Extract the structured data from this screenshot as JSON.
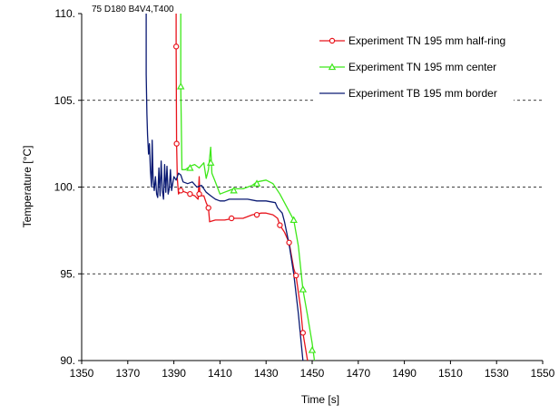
{
  "chart_data": {
    "type": "line",
    "title": "",
    "annotation": "75 D180 B4V4,T400",
    "xlabel": "Time [s]",
    "ylabel": "Temperature [°C]",
    "xlim": [
      1350,
      1550
    ],
    "ylim": [
      90,
      110
    ],
    "xticks": [
      "1350",
      "1370",
      "1390",
      "1410",
      "1430",
      "1450",
      "1470",
      "1490",
      "1510",
      "1530",
      "1550"
    ],
    "yticks": [
      "90.",
      "95.",
      "100.",
      "105.",
      "110."
    ],
    "grid": "horizontal-dashed",
    "legend_position": "top-right",
    "series": [
      {
        "name": "Experiment TN 195 mm half-ring",
        "color": "#e8141c",
        "marker": "circle",
        "points": [
          [
            1391,
            110
          ],
          [
            1391,
            108.1
          ],
          [
            1391.2,
            102.5
          ],
          [
            1391.5,
            100.5
          ],
          [
            1392,
            99.6
          ],
          [
            1393,
            99.8
          ],
          [
            1395,
            99.7
          ],
          [
            1397,
            99.6
          ],
          [
            1399,
            99.5
          ],
          [
            1400.5,
            99.3
          ],
          [
            1401,
            100.6
          ],
          [
            1401.3,
            99.5
          ],
          [
            1403,
            99.5
          ],
          [
            1404,
            99.1
          ],
          [
            1405,
            98.8
          ],
          [
            1405.5,
            98.0
          ],
          [
            1408,
            98.1
          ],
          [
            1412,
            98.1
          ],
          [
            1416,
            98.2
          ],
          [
            1420,
            98.2
          ],
          [
            1424,
            98.4
          ],
          [
            1428,
            98.5
          ],
          [
            1430,
            98.5
          ],
          [
            1433,
            98.4
          ],
          [
            1435,
            98.2
          ],
          [
            1436,
            97.8
          ],
          [
            1438,
            97.4
          ],
          [
            1440,
            96.8
          ],
          [
            1442,
            95.3
          ],
          [
            1443,
            94.9
          ],
          [
            1445,
            93.0
          ],
          [
            1446,
            91.6
          ],
          [
            1448,
            90
          ]
        ],
        "marker_points": [
          [
            1391,
            108.1
          ],
          [
            1391.2,
            102.5
          ],
          [
            1393,
            99.8
          ],
          [
            1397,
            99.6
          ],
          [
            1401,
            99.6
          ],
          [
            1405,
            98.8
          ],
          [
            1415,
            98.2
          ],
          [
            1426,
            98.4
          ],
          [
            1436,
            97.8
          ],
          [
            1440,
            96.8
          ],
          [
            1443,
            94.9
          ],
          [
            1446,
            91.6
          ]
        ]
      },
      {
        "name": "Experiment TN 195 mm center",
        "color": "#3ee81a",
        "marker": "triangle",
        "points": [
          [
            1393,
            110
          ],
          [
            1393,
            105.8
          ],
          [
            1393.5,
            101.0
          ],
          [
            1395,
            101.0
          ],
          [
            1397,
            101.2
          ],
          [
            1399,
            101.3
          ],
          [
            1401,
            101.1
          ],
          [
            1403,
            101.4
          ],
          [
            1404,
            100.5
          ],
          [
            1405,
            101.0
          ],
          [
            1406,
            102.3
          ],
          [
            1406.5,
            100.8
          ],
          [
            1408,
            100.3
          ],
          [
            1410,
            99.6
          ],
          [
            1412,
            99.7
          ],
          [
            1416,
            99.9
          ],
          [
            1420,
            99.9
          ],
          [
            1424,
            100.1
          ],
          [
            1426,
            100.3
          ],
          [
            1430,
            100.4
          ],
          [
            1433,
            100.2
          ],
          [
            1436,
            99.6
          ],
          [
            1438,
            99.1
          ],
          [
            1440,
            98.6
          ],
          [
            1442,
            98.1
          ],
          [
            1444,
            96.6
          ],
          [
            1446,
            94.1
          ],
          [
            1448,
            92.6
          ],
          [
            1450,
            91.0
          ],
          [
            1451,
            90
          ]
        ],
        "marker_points": [
          [
            1393,
            105.8
          ],
          [
            1397,
            101.1
          ],
          [
            1406,
            101.4
          ],
          [
            1416,
            99.8
          ],
          [
            1426,
            100.2
          ],
          [
            1442,
            98.1
          ],
          [
            1446,
            94.1
          ],
          [
            1450,
            90.6
          ]
        ]
      },
      {
        "name": "Experiment TB 195 mm border",
        "color": "#0a1a73",
        "marker": "none",
        "points": [
          [
            1378,
            110
          ],
          [
            1378,
            106.5
          ],
          [
            1378.3,
            104.2
          ],
          [
            1378.6,
            103.0
          ],
          [
            1379,
            101.9
          ],
          [
            1379.4,
            102.5
          ],
          [
            1379.8,
            101.0
          ],
          [
            1380.3,
            100.0
          ],
          [
            1380.6,
            102.7
          ],
          [
            1381,
            100.5
          ],
          [
            1381.5,
            99.8
          ],
          [
            1382,
            100.6
          ],
          [
            1382.5,
            99.6
          ],
          [
            1383,
            99.4
          ],
          [
            1383.5,
            101.1
          ],
          [
            1384,
            99.5
          ],
          [
            1384.5,
            101.5
          ],
          [
            1385,
            99.8
          ],
          [
            1385.5,
            99.3
          ],
          [
            1386,
            101.3
          ],
          [
            1386.5,
            99.7
          ],
          [
            1387,
            101.2
          ],
          [
            1387.5,
            99.6
          ],
          [
            1388,
            99.9
          ],
          [
            1388.5,
            101.0
          ],
          [
            1389,
            99.8
          ],
          [
            1390,
            100.6
          ],
          [
            1391,
            100.4
          ],
          [
            1392,
            100.8
          ],
          [
            1393,
            100.7
          ],
          [
            1394,
            100.3
          ],
          [
            1396,
            100.2
          ],
          [
            1398,
            100.3
          ],
          [
            1400,
            100.0
          ],
          [
            1402,
            100.1
          ],
          [
            1404,
            99.7
          ],
          [
            1406,
            99.5
          ],
          [
            1408,
            99.3
          ],
          [
            1410,
            99.2
          ],
          [
            1412,
            99.2
          ],
          [
            1414,
            99.3
          ],
          [
            1418,
            99.3
          ],
          [
            1422,
            99.3
          ],
          [
            1426,
            99.2
          ],
          [
            1430,
            99.2
          ],
          [
            1434,
            99.1
          ],
          [
            1435,
            98.8
          ],
          [
            1437,
            98.5
          ],
          [
            1438,
            98.0
          ],
          [
            1440,
            96.7
          ],
          [
            1442,
            95.0
          ],
          [
            1444,
            92.7
          ],
          [
            1446,
            90
          ]
        ],
        "marker_points": []
      }
    ]
  }
}
